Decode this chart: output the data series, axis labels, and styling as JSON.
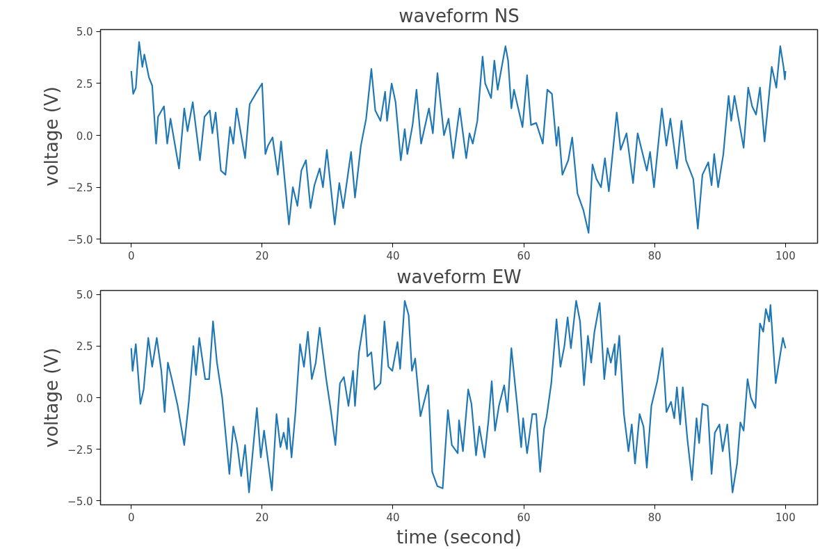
{
  "chart_data": [
    {
      "type": "line",
      "title": "waveform NS",
      "ylabel": "voltage (V)",
      "grid": false,
      "line_style": "solid",
      "xlim": [
        -4.7,
        104.9
      ],
      "ylim": [
        -5.2,
        5.1
      ],
      "xticks": [
        0,
        20,
        40,
        60,
        80,
        100
      ],
      "yticks": [
        {
          "value": -5,
          "label": "−5.0"
        },
        {
          "value": -2.5,
          "label": "−2.5"
        },
        {
          "value": 0,
          "label": "0.0"
        },
        {
          "value": 2.5,
          "label": "2.5"
        },
        {
          "value": 5,
          "label": "5.0"
        }
      ],
      "series": [
        {
          "color": "#1f77b4",
          "x": [
            0,
            0.3,
            0.7,
            1.2,
            1.7,
            2.0,
            2.7,
            3.2,
            3.8,
            4.1,
            5.0,
            5.5,
            6.0,
            7.3,
            8.1,
            8.6,
            9.4,
            10.5,
            11.2,
            12.0,
            12.4,
            12.9,
            13.7,
            14.4,
            15.1,
            15.6,
            16.1,
            17.4,
            18.1,
            19.2,
            20.0,
            20.5,
            20.9,
            21.6,
            22.4,
            22.9,
            24.1,
            24.7,
            25.4,
            26.0,
            26.7,
            27.4,
            28.0,
            28.8,
            29.3,
            29.9,
            31.1,
            31.8,
            32.4,
            33.6,
            34.2,
            35.1,
            35.9,
            36.7,
            37.3,
            38.1,
            38.8,
            39.1,
            39.8,
            40.4,
            41.2,
            41.8,
            42.2,
            43.0,
            43.6,
            44.3,
            45.5,
            46.1,
            46.8,
            47.8,
            48.5,
            49.2,
            50.2,
            51.2,
            51.7,
            52.2,
            52.9,
            53.7,
            54.1,
            55.0,
            55.5,
            56.0,
            57.2,
            57.6,
            58.1,
            58.5,
            59.8,
            60.5,
            61.1,
            61.9,
            62.9,
            63.6,
            64.3,
            65.0,
            65.3,
            65.9,
            66.8,
            67.4,
            68.2,
            69.1,
            69.9,
            70.5,
            71.1,
            71.8,
            72.4,
            73.0,
            74.2,
            74.8,
            75.7,
            76.7,
            77.4,
            78.8,
            79.3,
            79.9,
            81.1,
            81.8,
            82.4,
            83.4,
            84.1,
            84.8,
            85.9,
            86.6,
            87.3,
            88.2,
            88.7,
            89.1,
            89.7,
            90.5,
            91.3,
            91.7,
            92.2,
            93.6,
            94.3,
            94.9,
            95.5,
            96.1,
            96.8,
            97.9,
            98.6,
            99.2,
            99.7,
            99.9,
            100.0
          ],
          "values": [
            3.1,
            2.0,
            2.3,
            4.5,
            3.3,
            3.9,
            2.8,
            2.4,
            -0.4,
            0.9,
            1.4,
            -0.4,
            0.8,
            -1.6,
            1.3,
            0.2,
            1.6,
            -1.2,
            0.9,
            1.2,
            0.1,
            1.1,
            -1.7,
            -1.9,
            0.4,
            -0.4,
            1.3,
            -1.1,
            1.5,
            2.1,
            2.5,
            -0.9,
            -0.5,
            -0.1,
            -1.9,
            -0.3,
            -4.3,
            -2.5,
            -3.4,
            -1.7,
            -1.2,
            -3.5,
            -2.4,
            -1.6,
            -2.5,
            -0.7,
            -4.3,
            -2.3,
            -3.5,
            -0.8,
            -3.0,
            -0.5,
            0.8,
            3.2,
            1.2,
            0.7,
            2.1,
            0.7,
            2.5,
            1.6,
            -1.2,
            0.3,
            -0.9,
            0.5,
            2.2,
            -0.4,
            1.3,
            0.1,
            3.0,
            0.0,
            0.8,
            -1.1,
            1.3,
            -1.1,
            0.1,
            -0.4,
            0.7,
            3.8,
            2.5,
            1.8,
            3.6,
            2.2,
            4.3,
            3.6,
            1.3,
            2.2,
            0.4,
            2.9,
            0.5,
            0.6,
            -0.4,
            2.2,
            2.0,
            -0.5,
            0.4,
            -1.9,
            -1.2,
            -0.1,
            -2.8,
            -3.6,
            -4.7,
            -1.4,
            -2.1,
            -2.5,
            -1.1,
            -2.7,
            1.1,
            -0.7,
            0.1,
            -2.3,
            0.1,
            -1.7,
            -0.8,
            -2.5,
            1.3,
            -0.5,
            0.8,
            -1.6,
            0.7,
            -1.2,
            -2.1,
            -4.5,
            -1.9,
            -1.3,
            -2.4,
            -0.9,
            -2.5,
            -0.9,
            1.9,
            0.7,
            1.9,
            -0.6,
            2.3,
            1.4,
            1.0,
            2.3,
            -0.3,
            3.3,
            2.3,
            4.3,
            3.3,
            2.7,
            3.1
          ]
        }
      ]
    },
    {
      "type": "line",
      "title": "waveform EW",
      "ylabel": "voltage (V)",
      "xlabel": "time (second)",
      "grid": false,
      "line_style": "solid",
      "xlim": [
        -4.7,
        104.9
      ],
      "ylim": [
        -5.2,
        5.2
      ],
      "xticks": [
        0,
        20,
        40,
        60,
        80,
        100
      ],
      "yticks": [
        {
          "value": -5,
          "label": "−5.0"
        },
        {
          "value": -2.5,
          "label": "−2.5"
        },
        {
          "value": 0,
          "label": "0.0"
        },
        {
          "value": 2.5,
          "label": "2.5"
        },
        {
          "value": 5,
          "label": "5.0"
        }
      ],
      "series": [
        {
          "color": "#1f77b4",
          "x": [
            0,
            0.2,
            0.7,
            1.4,
            1.9,
            2.6,
            3.2,
            3.9,
            4.6,
            5.1,
            5.6,
            6.2,
            7.1,
            8.1,
            8.8,
            9.5,
            9.9,
            10.4,
            11.3,
            11.9,
            12.5,
            13.1,
            13.9,
            15.0,
            15.6,
            16.2,
            16.8,
            17.4,
            18.0,
            19.2,
            19.8,
            20.3,
            21.5,
            22.2,
            22.8,
            23.3,
            23.8,
            24.0,
            24.5,
            25.1,
            25.8,
            26.4,
            27.0,
            27.6,
            28.2,
            28.8,
            29.8,
            30.5,
            31.2,
            31.9,
            32.5,
            33.2,
            33.9,
            34.2,
            34.8,
            35.7,
            36.1,
            36.7,
            37.2,
            38.1,
            38.7,
            39.3,
            39.9,
            40.7,
            41.1,
            41.8,
            42.4,
            42.9,
            43.4,
            44.2,
            45.0,
            45.4,
            46.0,
            46.8,
            47.6,
            48.4,
            49.0,
            49.9,
            50.1,
            50.7,
            51.5,
            52.0,
            52.7,
            53.2,
            54.0,
            54.6,
            55.1,
            55.6,
            56.2,
            57.0,
            57.5,
            58.1,
            59.0,
            59.6,
            59.9,
            60.5,
            61.3,
            61.9,
            62.5,
            63.1,
            63.5,
            64.2,
            65.0,
            65.6,
            66.2,
            66.7,
            67.2,
            68.0,
            68.6,
            69.2,
            69.8,
            70.3,
            70.8,
            71.6,
            72.3,
            72.8,
            73.3,
            73.9,
            74.0,
            74.6,
            75.3,
            76.0,
            76.5,
            77.0,
            77.7,
            78.3,
            78.8,
            79.5,
            80.4,
            81.2,
            81.8,
            82.5,
            83.0,
            83.4,
            83.9,
            84.3,
            85.0,
            85.7,
            86.4,
            86.8,
            87.3,
            88.1,
            88.7,
            89.2,
            89.9,
            90.4,
            91.1,
            91.9,
            92.6,
            93.1,
            93.6,
            94.2,
            94.7,
            95.4,
            96.1,
            96.6,
            97.0,
            97.5,
            97.7,
            98.5,
            98.9,
            99.6,
            100.0
          ],
          "values": [
            2.4,
            1.3,
            2.6,
            -0.3,
            0.4,
            2.9,
            1.5,
            2.9,
            1.3,
            -0.7,
            1.7,
            0.9,
            -0.4,
            -2.3,
            -0.2,
            2.5,
            1.1,
            2.9,
            0.9,
            0.9,
            3.7,
            1.7,
            0.0,
            -3.7,
            -1.4,
            -2.3,
            -3.8,
            -2.3,
            -4.6,
            -0.5,
            -2.9,
            -1.6,
            -4.5,
            -0.8,
            -2.4,
            -1.7,
            -2.5,
            -1.0,
            -2.9,
            -0.7,
            2.6,
            1.5,
            3.2,
            0.9,
            1.7,
            3.4,
            0.9,
            -0.6,
            -2.3,
            0.7,
            1.0,
            -0.4,
            1.3,
            -0.4,
            2.2,
            4.0,
            2.0,
            2.2,
            0.4,
            0.7,
            3.7,
            1.5,
            1.3,
            2.7,
            1.4,
            4.7,
            4.0,
            1.3,
            1.9,
            -0.9,
            0.1,
            0.6,
            -3.6,
            -4.3,
            -4.4,
            -0.6,
            -2.3,
            -2.7,
            -1.1,
            -2.6,
            0.4,
            -0.3,
            -2.8,
            -1.4,
            -2.9,
            -1.1,
            0.8,
            -1.6,
            -0.4,
            0.6,
            -0.7,
            2.4,
            -0.4,
            -2.4,
            -1.0,
            -2.7,
            -0.8,
            -0.8,
            -3.6,
            -1.5,
            -0.9,
            0.7,
            3.8,
            1.5,
            2.5,
            3.9,
            2.4,
            4.7,
            3.7,
            0.6,
            3.0,
            1.7,
            3.2,
            4.6,
            0.9,
            2.4,
            1.7,
            2.6,
            1.1,
            3.0,
            -0.8,
            -2.6,
            -1.3,
            -3.2,
            -0.8,
            -1.4,
            -3.4,
            -0.4,
            0.8,
            2.4,
            -0.7,
            -0.2,
            -1.0,
            0.5,
            -1.3,
            0.5,
            -2.0,
            -4.0,
            -1.0,
            -2.2,
            -0.3,
            -0.4,
            -3.7,
            -1.7,
            -1.3,
            -2.6,
            -1.3,
            -4.6,
            -3.2,
            -1.2,
            -1.6,
            0.9,
            0.0,
            -0.5,
            3.6,
            3.2,
            4.3,
            3.7,
            4.5,
            0.7,
            1.5,
            2.9,
            2.4
          ]
        }
      ]
    }
  ]
}
